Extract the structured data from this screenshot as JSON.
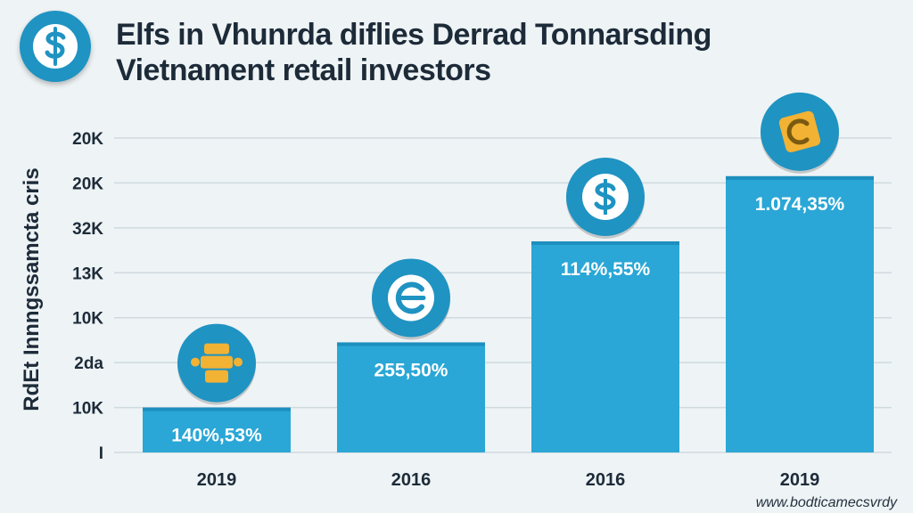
{
  "header": {
    "title_line1": "Elfs in Vhunrda diflies Derrad Tonnarsding",
    "title_line2": "Vietnament retail investors",
    "logo_icon": "dollar-icon"
  },
  "colors": {
    "bar": "#2aa7d6",
    "bar_dark": "#1c8fbe",
    "icon_circle": "#1f93c2",
    "icon_gold": "#f2b233",
    "grid": "#cfdadf",
    "text": "#1d2b39"
  },
  "footer": {
    "watermark": "www.bodticamecsvrdy"
  },
  "chart_data": {
    "type": "bar",
    "ylabel": "RdEt Innngssamcta cris",
    "ytick_labels": [
      "20K",
      "20K",
      "32K",
      "13K",
      "10K",
      "2da",
      "10K",
      "I"
    ],
    "categories": [
      "2019",
      "2016",
      "2016",
      "2019"
    ],
    "values": [
      1,
      2.45,
      4.7,
      6.15
    ],
    "ylim": [
      0,
      7
    ],
    "data_labels": [
      "140%,53%",
      "255,50%",
      "114%,55%",
      "1.074,35%"
    ],
    "bar_icons": [
      "gold-coin-stack-icon",
      "euro-icon",
      "dollar-icon",
      "gold-cheque-icon"
    ],
    "grid": true,
    "legend": "none"
  }
}
